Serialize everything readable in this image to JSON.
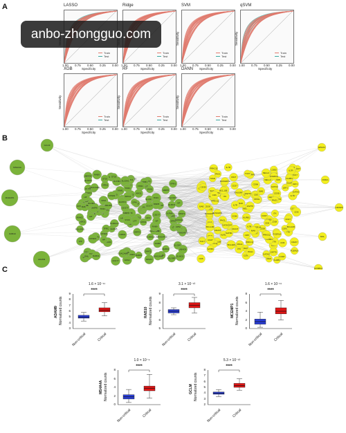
{
  "watermark": "anbo-zhongguo.com",
  "panels": {
    "a": "A",
    "b": "B",
    "c": "C"
  },
  "roc": {
    "xlabel": "Specificity",
    "ylabel": "Sensitivity",
    "legend_train": "Train",
    "legend_test": "Test",
    "ticks_x": [
      "1.00",
      "0.75",
      "0.50",
      "0.25",
      "0.00"
    ],
    "colors": {
      "train": "#e07a6e",
      "test": "#3aa8a0",
      "diag": "#bbbbbb"
    },
    "models": [
      "LASSO",
      "Ridge",
      "SVM",
      "qSVM",
      "XGB",
      "RF",
      "DANN"
    ]
  },
  "network": {
    "green_color": "#7bb33a",
    "yellow_color": "#f2ee1e",
    "green_labels": [
      "GCLM",
      "MS4A4A",
      "MCEMP1",
      "RAB10",
      "ADAM9",
      "ELMO1",
      "ST20",
      "CD177",
      "SPIN1",
      "TFRC",
      "OXSR1",
      "ARG1",
      "HK3",
      "IRAK3",
      "PGLYRP1",
      "SLC8A1",
      "DPAT1",
      "RAB9",
      "ABHD5",
      "RAB31",
      "ARHGAP25",
      "VNN1",
      "CPM",
      "S100A12",
      "ORM1",
      "HP",
      "LTF",
      "MMP8",
      "CEACAM8",
      "OLFM4"
    ],
    "yellow_labels": [
      "EPHX2",
      "RORA",
      "CRISP3",
      "MAL",
      "ACSBG1",
      "CD27",
      "PAG1",
      "SIAE",
      "RASGRP1",
      "CCR7",
      "IL7R",
      "LEF1",
      "TCF7",
      "CD28",
      "FCER1A",
      "CD247",
      "ZAP70",
      "ITK",
      "MAK",
      "BCL11B",
      "GATA3",
      "CD3D",
      "CD3G",
      "CD5",
      "CD6",
      "KLRB1",
      "NELL2",
      "PRKCQ",
      "CD96",
      "SATB1"
    ]
  },
  "boxplots": {
    "ylabel": "Normalized counts",
    "groups": [
      "Non-critical",
      "Critical"
    ],
    "colors": {
      "noncritical": "#2a3ed8",
      "critical": "#e01616"
    },
    "significance": "****",
    "plots": [
      {
        "gene": "ADAM9",
        "pvalue": "1.6 × 10⁻¹¹",
        "ylim": [
          3,
          9
        ],
        "ticks": [
          "9",
          "8",
          "7",
          "6",
          "5",
          "4",
          "3"
        ],
        "noncritical": {
          "min": 4.3,
          "q1": 4.8,
          "median": 5.0,
          "q3": 5.3,
          "max": 5.8
        },
        "critical": {
          "min": 5.2,
          "q1": 5.9,
          "median": 6.2,
          "q3": 6.6,
          "max": 7.5
        }
      },
      {
        "gene": "RAB10",
        "pvalue": "3.1 × 10⁻¹³",
        "ylim": [
          5,
          9
        ],
        "ticks": [
          "9",
          "8",
          "7",
          "6",
          "5"
        ],
        "noncritical": {
          "min": 6.6,
          "q1": 6.8,
          "median": 7.0,
          "q3": 7.2,
          "max": 7.4
        },
        "critical": {
          "min": 6.8,
          "q1": 7.4,
          "median": 7.7,
          "q3": 8.0,
          "max": 8.6
        }
      },
      {
        "gene": "MCEMP1",
        "pvalue": "1.6 × 10⁻¹¹",
        "ylim": [
          0,
          8
        ],
        "ticks": [
          "8",
          "6",
          "4",
          "2",
          "0"
        ],
        "noncritical": {
          "min": 0.3,
          "q1": 1.0,
          "median": 1.6,
          "q3": 2.2,
          "max": 3.8
        },
        "critical": {
          "min": 2.0,
          "q1": 3.4,
          "median": 4.0,
          "q3": 4.8,
          "max": 6.5
        }
      },
      {
        "gene": "MS4A4A",
        "pvalue": "1.0 × 10⁻⁹",
        "ylim": [
          0,
          8
        ],
        "ticks": [
          "8",
          "6",
          "4",
          "2",
          "0"
        ],
        "noncritical": {
          "min": 0.5,
          "q1": 1.3,
          "median": 1.8,
          "q3": 2.3,
          "max": 3.5
        },
        "critical": {
          "min": 1.5,
          "q1": 3.2,
          "median": 3.8,
          "q3": 4.3,
          "max": 7.0
        }
      },
      {
        "gene": "GCLM",
        "pvalue": "5.3 × 10⁻¹³",
        "ylim": [
          2,
          8
        ],
        "ticks": [
          "8",
          "7",
          "6",
          "5",
          "4",
          "3",
          "2"
        ],
        "noncritical": {
          "min": 3.4,
          "q1": 3.8,
          "median": 4.0,
          "q3": 4.2,
          "max": 4.6
        },
        "critical": {
          "min": 4.5,
          "q1": 5.0,
          "median": 5.3,
          "q3": 5.7,
          "max": 6.5
        }
      }
    ]
  }
}
